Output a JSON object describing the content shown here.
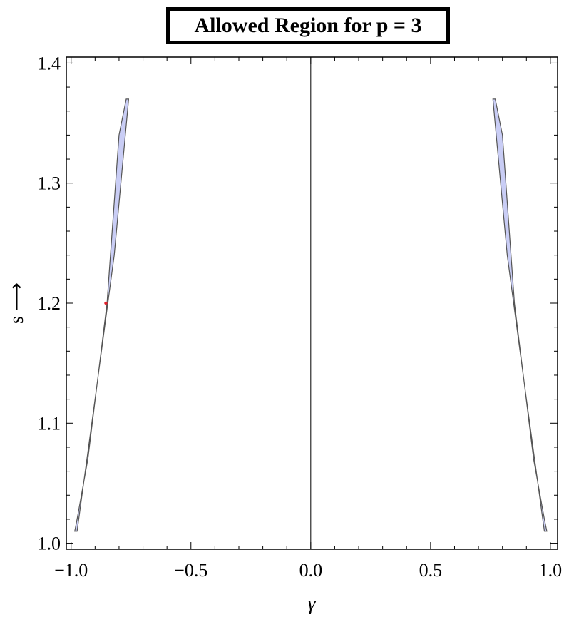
{
  "chart_data": {
    "type": "area",
    "title": "Allowed Region for p = 3",
    "xlabel": "γ",
    "ylabel": "s ⟶",
    "xlim": [
      -1.02,
      1.03
    ],
    "ylim": [
      0.995,
      1.405
    ],
    "x_ticks": [
      -1.0,
      -0.5,
      0.0,
      0.5,
      1.0
    ],
    "x_tick_labels": [
      "−1.0",
      "−0.5",
      "0.0",
      "0.5",
      "1.0"
    ],
    "y_ticks": [
      1.0,
      1.1,
      1.2,
      1.3,
      1.4
    ],
    "y_tick_labels": [
      "1.0",
      "1.1",
      "1.2",
      "1.3",
      "1.4"
    ],
    "grid": false,
    "fill_color": "#c9cdf5",
    "edge_color": "#555555",
    "regions": [
      {
        "points": [
          [
            -0.985,
            1.01
          ],
          [
            -0.975,
            1.01
          ],
          [
            -0.9,
            1.12
          ],
          [
            -0.82,
            1.24
          ],
          [
            -0.76,
            1.37
          ],
          [
            -0.77,
            1.37
          ],
          [
            -0.8,
            1.34
          ],
          [
            -0.85,
            1.2
          ],
          [
            -0.93,
            1.07
          ],
          [
            -0.975,
            1.02
          ]
        ]
      },
      {
        "points": [
          [
            0.985,
            1.01
          ],
          [
            0.975,
            1.01
          ],
          [
            0.9,
            1.12
          ],
          [
            0.82,
            1.24
          ],
          [
            0.76,
            1.37
          ],
          [
            0.77,
            1.37
          ],
          [
            0.8,
            1.34
          ],
          [
            0.85,
            1.2
          ],
          [
            0.93,
            1.07
          ],
          [
            0.975,
            1.02
          ]
        ]
      }
    ],
    "marked_point": {
      "x": -0.855,
      "y": 1.2,
      "color": "#e0202a"
    }
  }
}
